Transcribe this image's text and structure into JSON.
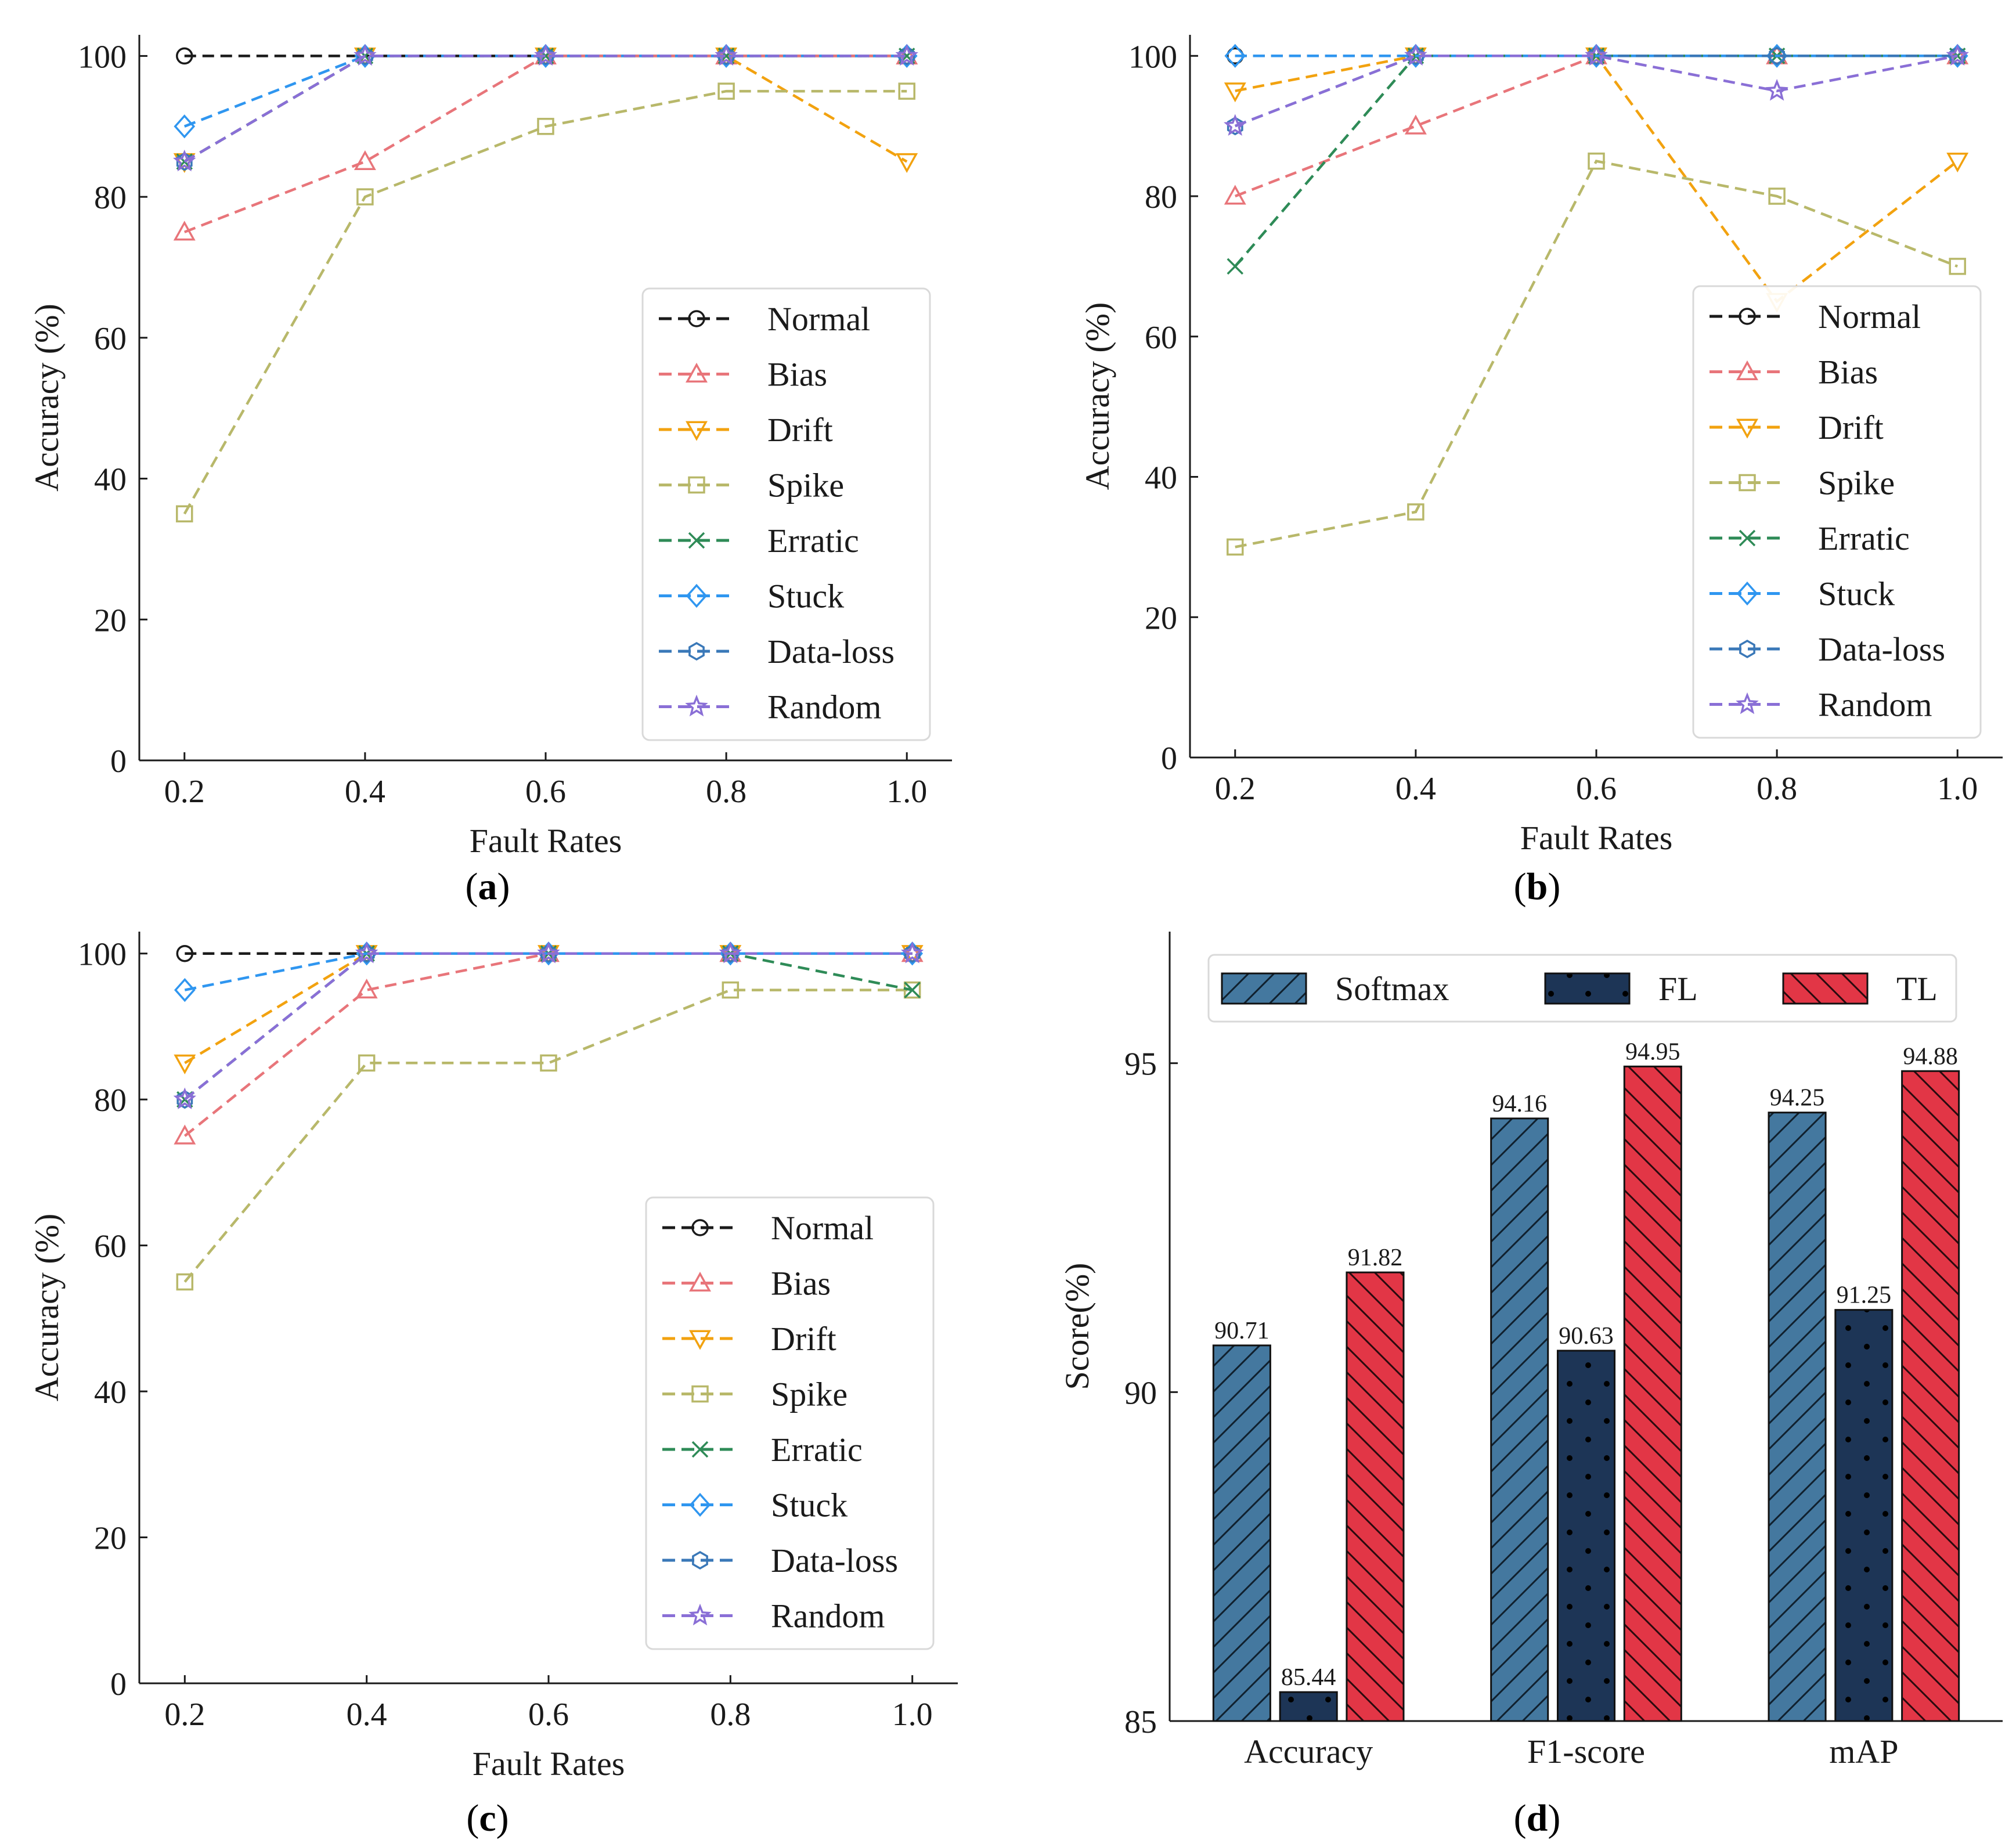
{
  "figure": {
    "panels": [
      {
        "letter": "a"
      },
      {
        "letter": "b"
      },
      {
        "letter": "c"
      },
      {
        "letter": "d"
      }
    ]
  },
  "colors": {
    "Normal": "#1a1a1a",
    "Bias": "#e8757a",
    "Drift": "#f2a20f",
    "Spike": "#b8b86a",
    "Erratic": "#2e8b57",
    "Stuck": "#2f96f0",
    "Data-loss": "#3a78b8",
    "Random": "#8a6fd6",
    "Softmax": "#44789f",
    "FL": "#1d3556",
    "TL": "#e23646"
  },
  "chart_data": [
    {
      "id": "a",
      "type": "line",
      "xlabel": "Fault Rates",
      "ylabel": "Accuracy (%)",
      "x": [
        0.2,
        0.4,
        0.6,
        0.8,
        1.0
      ],
      "x_tick_labels": [
        "0.2",
        "0.4",
        "0.6",
        "0.8",
        "1.0"
      ],
      "y_ticks": [
        0,
        20,
        40,
        60,
        80,
        100
      ],
      "ylim": [
        0,
        103
      ],
      "legend_position": "lower-right",
      "series": [
        {
          "name": "Normal",
          "marker": "circle",
          "values": [
            100,
            100,
            100,
            100,
            100
          ]
        },
        {
          "name": "Bias",
          "marker": "triangle",
          "values": [
            75,
            85,
            100,
            100,
            100
          ]
        },
        {
          "name": "Drift",
          "marker": "tri-down",
          "values": [
            85,
            100,
            100,
            100,
            85
          ]
        },
        {
          "name": "Spike",
          "marker": "square",
          "values": [
            35,
            80,
            90,
            95,
            95
          ]
        },
        {
          "name": "Erratic",
          "marker": "x",
          "values": [
            85,
            100,
            100,
            100,
            100
          ]
        },
        {
          "name": "Stuck",
          "marker": "diamond",
          "values": [
            90,
            100,
            100,
            100,
            100
          ]
        },
        {
          "name": "Data-loss",
          "marker": "hexagon",
          "values": [
            85,
            100,
            100,
            100,
            100
          ]
        },
        {
          "name": "Random",
          "marker": "star",
          "values": [
            85,
            100,
            100,
            100,
            100
          ]
        }
      ]
    },
    {
      "id": "b",
      "type": "line",
      "xlabel": "Fault Rates",
      "ylabel": "Accuracy (%)",
      "x": [
        0.2,
        0.4,
        0.6,
        0.8,
        1.0
      ],
      "x_tick_labels": [
        "0.2",
        "0.4",
        "0.6",
        "0.8",
        "1.0"
      ],
      "y_ticks": [
        0,
        20,
        40,
        60,
        80,
        100
      ],
      "ylim": [
        0,
        103
      ],
      "legend_position": "lower-right",
      "series": [
        {
          "name": "Normal",
          "marker": "circle",
          "values": [
            100,
            100,
            100,
            100,
            100
          ]
        },
        {
          "name": "Bias",
          "marker": "triangle",
          "values": [
            80,
            90,
            100,
            100,
            100
          ]
        },
        {
          "name": "Drift",
          "marker": "tri-down",
          "values": [
            95,
            100,
            100,
            65,
            85
          ]
        },
        {
          "name": "Spike",
          "marker": "square",
          "values": [
            30,
            35,
            85,
            80,
            70
          ]
        },
        {
          "name": "Erratic",
          "marker": "x",
          "values": [
            70,
            100,
            100,
            100,
            100
          ]
        },
        {
          "name": "Stuck",
          "marker": "diamond",
          "values": [
            100,
            100,
            100,
            100,
            100
          ]
        },
        {
          "name": "Data-loss",
          "marker": "hexagon",
          "values": [
            90,
            100,
            100,
            100,
            100
          ]
        },
        {
          "name": "Random",
          "marker": "star",
          "values": [
            90,
            100,
            100,
            95,
            100
          ]
        }
      ]
    },
    {
      "id": "c",
      "type": "line",
      "xlabel": "Fault Rates",
      "ylabel": "Accuracy (%)",
      "x": [
        0.2,
        0.4,
        0.6,
        0.8,
        1.0
      ],
      "x_tick_labels": [
        "0.2",
        "0.4",
        "0.6",
        "0.8",
        "1.0"
      ],
      "y_ticks": [
        0,
        20,
        40,
        60,
        80,
        100
      ],
      "ylim": [
        0,
        103
      ],
      "legend_position": "lower-right",
      "series": [
        {
          "name": "Normal",
          "marker": "circle",
          "values": [
            100,
            100,
            100,
            100,
            100
          ]
        },
        {
          "name": "Bias",
          "marker": "triangle",
          "values": [
            75,
            95,
            100,
            100,
            100
          ]
        },
        {
          "name": "Drift",
          "marker": "tri-down",
          "values": [
            85,
            100,
            100,
            100,
            100
          ]
        },
        {
          "name": "Spike",
          "marker": "square",
          "values": [
            55,
            85,
            85,
            95,
            95
          ]
        },
        {
          "name": "Erratic",
          "marker": "x",
          "values": [
            80,
            100,
            100,
            100,
            95
          ]
        },
        {
          "name": "Stuck",
          "marker": "diamond",
          "values": [
            95,
            100,
            100,
            100,
            100
          ]
        },
        {
          "name": "Data-loss",
          "marker": "hexagon",
          "values": [
            80,
            100,
            100,
            100,
            100
          ]
        },
        {
          "name": "Random",
          "marker": "star",
          "values": [
            80,
            100,
            100,
            100,
            100
          ]
        }
      ]
    },
    {
      "id": "d",
      "type": "bar",
      "ylabel": "Score(%)",
      "xlabel": "",
      "categories": [
        "Accuracy",
        "F1-score",
        "mAP"
      ],
      "y_ticks": [
        85,
        90,
        95
      ],
      "ylim": [
        85,
        97
      ],
      "legend_position": "top",
      "series": [
        {
          "name": "Softmax",
          "hatch": "forward",
          "values": [
            90.71,
            94.16,
            94.25
          ],
          "labels": [
            "90.71",
            "94.16",
            "94.25"
          ]
        },
        {
          "name": "FL",
          "hatch": "dots",
          "values": [
            85.44,
            90.63,
            91.25
          ],
          "labels": [
            "85.44",
            "90.63",
            "91.25"
          ]
        },
        {
          "name": "TL",
          "hatch": "back",
          "values": [
            91.82,
            94.95,
            94.88
          ],
          "labels": [
            "91.82",
            "94.95",
            "94.88"
          ]
        }
      ]
    }
  ]
}
